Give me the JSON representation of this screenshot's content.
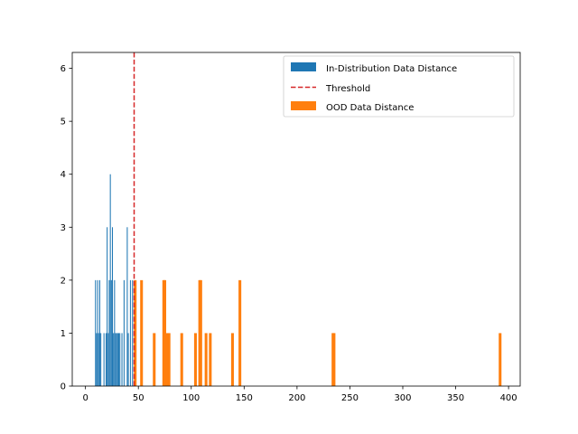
{
  "chart_data": {
    "type": "histogram",
    "xlim": [
      -12.5,
      411
    ],
    "ylim": [
      0,
      6.3
    ],
    "x_ticks": [
      0,
      50,
      100,
      150,
      200,
      250,
      300,
      350,
      400
    ],
    "y_ticks": [
      0,
      1,
      2,
      3,
      4,
      5,
      6
    ],
    "grid": false,
    "legend_position": "top-right",
    "threshold": {
      "name": "Threshold",
      "x": 46,
      "color": "#d62728",
      "style": "dashed"
    },
    "series": [
      {
        "name": "In-Distribution Data Distance",
        "color": "#1f77b4",
        "bar_width": 0.9,
        "bars": [
          {
            "x": 9.5,
            "count": 2
          },
          {
            "x": 10.5,
            "count": 1
          },
          {
            "x": 11.5,
            "count": 2
          },
          {
            "x": 12.5,
            "count": 1
          },
          {
            "x": 13.5,
            "count": 2
          },
          {
            "x": 14.5,
            "count": 1
          },
          {
            "x": 17.5,
            "count": 1
          },
          {
            "x": 19.5,
            "count": 1
          },
          {
            "x": 20.5,
            "count": 3
          },
          {
            "x": 21.5,
            "count": 1
          },
          {
            "x": 22.5,
            "count": 2
          },
          {
            "x": 23.5,
            "count": 4
          },
          {
            "x": 24.5,
            "count": 2
          },
          {
            "x": 25.5,
            "count": 3
          },
          {
            "x": 26.5,
            "count": 1
          },
          {
            "x": 27.5,
            "count": 2
          },
          {
            "x": 28.5,
            "count": 1
          },
          {
            "x": 29.5,
            "count": 1
          },
          {
            "x": 30.5,
            "count": 1
          },
          {
            "x": 31.5,
            "count": 1
          },
          {
            "x": 32.5,
            "count": 1
          },
          {
            "x": 34.5,
            "count": 1
          },
          {
            "x": 36.5,
            "count": 2
          },
          {
            "x": 39.5,
            "count": 3
          },
          {
            "x": 40.5,
            "count": 1
          },
          {
            "x": 42.5,
            "count": 2
          },
          {
            "x": 44.5,
            "count": 2
          },
          {
            "x": 46.5,
            "count": 1
          }
        ]
      },
      {
        "name": "OOD Data Distance",
        "color": "#ff7f0e",
        "bar_width": 2.6,
        "bars": [
          {
            "x": 47,
            "count": 2
          },
          {
            "x": 53,
            "count": 2
          },
          {
            "x": 65,
            "count": 1
          },
          {
            "x": 74,
            "count": 2
          },
          {
            "x": 75,
            "count": 2
          },
          {
            "x": 77,
            "count": 1
          },
          {
            "x": 79,
            "count": 1
          },
          {
            "x": 91,
            "count": 1
          },
          {
            "x": 104,
            "count": 1
          },
          {
            "x": 108,
            "count": 2
          },
          {
            "x": 109,
            "count": 2
          },
          {
            "x": 114,
            "count": 1
          },
          {
            "x": 118,
            "count": 1
          },
          {
            "x": 139,
            "count": 1
          },
          {
            "x": 146,
            "count": 2
          },
          {
            "x": 234,
            "count": 1
          },
          {
            "x": 235,
            "count": 1
          },
          {
            "x": 392,
            "count": 1
          }
        ]
      }
    ]
  }
}
